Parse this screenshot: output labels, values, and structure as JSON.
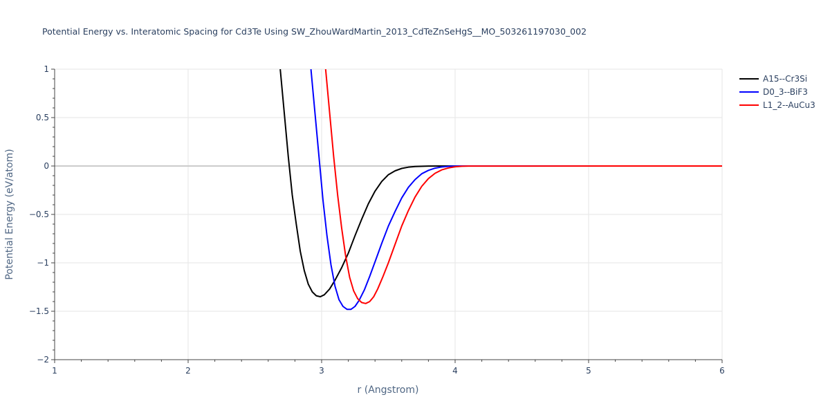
{
  "chart_data": {
    "type": "line",
    "title": "Potential Energy vs. Interatomic Spacing for Cd3Te Using SW_ZhouWardMartin_2013_CdTeZnSeHgS__MO_503261197030_002",
    "xlabel": "r (Angstrom)",
    "ylabel": "Potential Energy (eV/atom)",
    "xlim": [
      1,
      6
    ],
    "ylim": [
      -2,
      1
    ],
    "xticks": [
      1,
      2,
      3,
      4,
      5,
      6
    ],
    "yticks": [
      1,
      0.5,
      0,
      -0.5,
      -1,
      -1.5,
      -2
    ],
    "ytick_labels": [
      "1",
      "0.5",
      "0",
      "−0.5",
      "−1",
      "−1.5",
      "−2"
    ],
    "grid": true,
    "legend_position": "top-right",
    "series": [
      {
        "name": "A15--Cr3Si",
        "color": "#000000",
        "x": [
          2.69,
          2.72,
          2.75,
          2.78,
          2.81,
          2.84,
          2.87,
          2.9,
          2.93,
          2.96,
          2.99,
          3.02,
          3.06,
          3.1,
          3.15,
          3.2,
          3.25,
          3.3,
          3.35,
          3.4,
          3.45,
          3.5,
          3.55,
          3.6,
          3.65,
          3.7,
          3.8,
          3.9,
          4.0,
          6.0
        ],
        "y": [
          1.0,
          0.55,
          0.1,
          -0.3,
          -0.6,
          -0.88,
          -1.08,
          -1.22,
          -1.3,
          -1.34,
          -1.35,
          -1.33,
          -1.27,
          -1.18,
          -1.05,
          -0.9,
          -0.72,
          -0.55,
          -0.39,
          -0.26,
          -0.16,
          -0.09,
          -0.05,
          -0.025,
          -0.012,
          -0.005,
          -0.001,
          0.0,
          0.0,
          0.0
        ]
      },
      {
        "name": "D0_3--BiF3",
        "color": "#0000ff",
        "x": [
          2.92,
          2.95,
          2.98,
          3.01,
          3.04,
          3.07,
          3.1,
          3.13,
          3.16,
          3.19,
          3.22,
          3.25,
          3.28,
          3.32,
          3.36,
          3.4,
          3.45,
          3.5,
          3.55,
          3.6,
          3.65,
          3.7,
          3.75,
          3.8,
          3.85,
          3.9,
          3.95,
          4.0,
          4.05,
          6.0
        ],
        "y": [
          1.0,
          0.55,
          0.1,
          -0.35,
          -0.72,
          -1.02,
          -1.24,
          -1.38,
          -1.45,
          -1.48,
          -1.48,
          -1.45,
          -1.39,
          -1.28,
          -1.14,
          -0.99,
          -0.8,
          -0.62,
          -0.47,
          -0.33,
          -0.22,
          -0.14,
          -0.08,
          -0.045,
          -0.022,
          -0.01,
          -0.004,
          -0.001,
          0.0,
          0.0
        ]
      },
      {
        "name": "L1_2--AuCu3",
        "color": "#ff0000",
        "x": [
          3.03,
          3.06,
          3.09,
          3.12,
          3.15,
          3.18,
          3.21,
          3.24,
          3.27,
          3.3,
          3.33,
          3.36,
          3.39,
          3.42,
          3.46,
          3.5,
          3.55,
          3.6,
          3.65,
          3.7,
          3.75,
          3.8,
          3.85,
          3.9,
          3.95,
          4.0,
          4.05,
          4.1,
          6.0
        ],
        "y": [
          1.0,
          0.55,
          0.1,
          -0.3,
          -0.64,
          -0.93,
          -1.15,
          -1.29,
          -1.37,
          -1.41,
          -1.42,
          -1.4,
          -1.35,
          -1.27,
          -1.14,
          -1.0,
          -0.81,
          -0.62,
          -0.46,
          -0.32,
          -0.21,
          -0.13,
          -0.075,
          -0.04,
          -0.02,
          -0.008,
          -0.003,
          -0.001,
          0.0
        ]
      }
    ]
  }
}
